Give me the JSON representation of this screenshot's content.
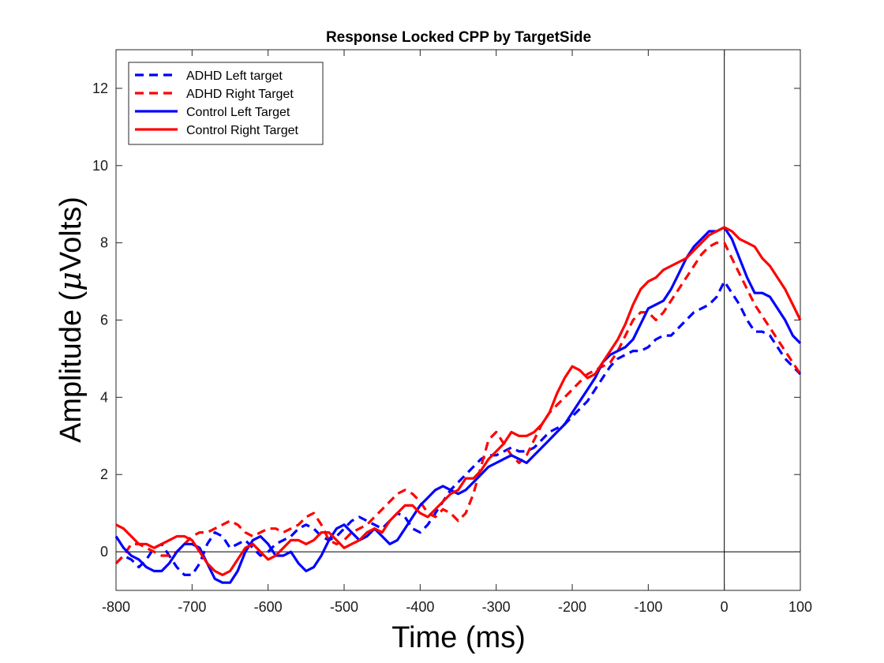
{
  "chart_data": {
    "type": "line",
    "title": "Response Locked CPP by TargetSide",
    "xlabel": "Time (ms)",
    "ylabel_prefix": "Amplitude (",
    "ylabel_mu": "μ",
    "ylabel_suffix": "Volts)",
    "xlim": [
      -800,
      100
    ],
    "ylim": [
      -1,
      13
    ],
    "xticks": [
      -800,
      -700,
      -600,
      -500,
      -400,
      -300,
      -200,
      -100,
      0,
      100
    ],
    "yticks": [
      0,
      2,
      4,
      6,
      8,
      10,
      12
    ],
    "grid": false,
    "legend_position": "top-left",
    "reference_lines": {
      "y": 0,
      "x": 0
    },
    "series": [
      {
        "name": "ADHD Left target",
        "color": "#0000ff",
        "style": "dashed",
        "x": [
          -800,
          -790,
          -780,
          -770,
          -760,
          -750,
          -740,
          -730,
          -720,
          -710,
          -700,
          -690,
          -680,
          -670,
          -660,
          -650,
          -640,
          -630,
          -620,
          -610,
          -600,
          -590,
          -580,
          -570,
          -560,
          -550,
          -540,
          -530,
          -520,
          -510,
          -500,
          -490,
          -480,
          -470,
          -460,
          -450,
          -440,
          -430,
          -420,
          -410,
          -400,
          -390,
          -380,
          -370,
          -360,
          -350,
          -340,
          -330,
          -320,
          -310,
          -300,
          -290,
          -280,
          -270,
          -260,
          -250,
          -240,
          -230,
          -220,
          -210,
          -200,
          -190,
          -180,
          -170,
          -160,
          -150,
          -140,
          -130,
          -120,
          -110,
          -100,
          -90,
          -80,
          -70,
          -60,
          -50,
          -40,
          -30,
          -20,
          -10,
          0,
          10,
          20,
          30,
          40,
          50,
          60,
          70,
          80,
          90,
          100
        ],
        "y": [
          -0.3,
          -0.1,
          -0.2,
          -0.4,
          -0.2,
          0.1,
          0.2,
          -0.1,
          -0.4,
          -0.6,
          -0.6,
          -0.3,
          0.2,
          0.5,
          0.4,
          0.1,
          0.2,
          0.3,
          0.1,
          -0.1,
          0.0,
          0.2,
          0.3,
          0.4,
          0.6,
          0.7,
          0.6,
          0.4,
          0.3,
          0.4,
          0.6,
          0.8,
          0.9,
          0.8,
          0.7,
          0.6,
          0.8,
          1.0,
          0.9,
          0.6,
          0.5,
          0.7,
          1.0,
          1.3,
          1.6,
          1.8,
          2.0,
          2.2,
          2.4,
          2.5,
          2.5,
          2.6,
          2.7,
          2.6,
          2.6,
          2.7,
          2.9,
          3.1,
          3.2,
          3.3,
          3.5,
          3.7,
          3.9,
          4.2,
          4.5,
          4.8,
          5.0,
          5.1,
          5.2,
          5.2,
          5.3,
          5.5,
          5.6,
          5.6,
          5.8,
          6.0,
          6.2,
          6.3,
          6.4,
          6.6,
          7.0,
          6.7,
          6.4,
          6.0,
          5.7,
          5.7,
          5.6,
          5.3,
          5.0,
          4.8,
          4.6
        ]
      },
      {
        "name": "ADHD Right Target",
        "color": "#ff0000",
        "style": "dashed",
        "x": [
          -800,
          -790,
          -780,
          -770,
          -760,
          -750,
          -740,
          -730,
          -720,
          -710,
          -700,
          -690,
          -680,
          -670,
          -660,
          -650,
          -640,
          -630,
          -620,
          -610,
          -600,
          -590,
          -580,
          -570,
          -560,
          -550,
          -540,
          -530,
          -520,
          -510,
          -500,
          -490,
          -480,
          -470,
          -460,
          -450,
          -440,
          -430,
          -420,
          -410,
          -400,
          -390,
          -380,
          -370,
          -360,
          -350,
          -340,
          -330,
          -320,
          -310,
          -300,
          -290,
          -280,
          -270,
          -260,
          -250,
          -240,
          -230,
          -220,
          -210,
          -200,
          -190,
          -180,
          -170,
          -160,
          -150,
          -140,
          -130,
          -120,
          -110,
          -100,
          -90,
          -80,
          -70,
          -60,
          -50,
          -40,
          -30,
          -20,
          -10,
          0,
          10,
          20,
          30,
          40,
          50,
          60,
          70,
          80,
          90,
          100
        ],
        "y": [
          -0.3,
          -0.1,
          0.2,
          0.2,
          0.1,
          0.0,
          -0.1,
          -0.1,
          0.0,
          0.2,
          0.4,
          0.5,
          0.5,
          0.6,
          0.7,
          0.8,
          0.7,
          0.5,
          0.4,
          0.5,
          0.6,
          0.6,
          0.5,
          0.6,
          0.7,
          0.9,
          1.0,
          0.7,
          0.3,
          0.2,
          0.3,
          0.5,
          0.6,
          0.7,
          0.9,
          1.1,
          1.3,
          1.5,
          1.6,
          1.5,
          1.3,
          1.0,
          0.9,
          1.1,
          1.0,
          0.8,
          1.0,
          1.5,
          2.2,
          2.9,
          3.1,
          2.8,
          2.5,
          2.3,
          2.5,
          2.9,
          3.3,
          3.6,
          3.8,
          4.0,
          4.2,
          4.4,
          4.6,
          4.7,
          4.8,
          4.9,
          5.2,
          5.6,
          6.0,
          6.2,
          6.2,
          6.0,
          6.2,
          6.5,
          6.8,
          7.1,
          7.4,
          7.7,
          7.9,
          8.0,
          8.0,
          7.6,
          7.2,
          6.8,
          6.4,
          6.1,
          5.8,
          5.5,
          5.2,
          4.9,
          4.6
        ]
      },
      {
        "name": "Control Left Target",
        "color": "#0000ff",
        "style": "solid",
        "x": [
          -800,
          -790,
          -780,
          -770,
          -760,
          -750,
          -740,
          -730,
          -720,
          -710,
          -700,
          -690,
          -680,
          -670,
          -660,
          -650,
          -640,
          -630,
          -620,
          -610,
          -600,
          -590,
          -580,
          -570,
          -560,
          -550,
          -540,
          -530,
          -520,
          -510,
          -500,
          -490,
          -480,
          -470,
          -460,
          -450,
          -440,
          -430,
          -420,
          -410,
          -400,
          -390,
          -380,
          -370,
          -360,
          -350,
          -340,
          -330,
          -320,
          -310,
          -300,
          -290,
          -280,
          -270,
          -260,
          -250,
          -240,
          -230,
          -220,
          -210,
          -200,
          -190,
          -180,
          -170,
          -160,
          -150,
          -140,
          -130,
          -120,
          -110,
          -100,
          -90,
          -80,
          -70,
          -60,
          -50,
          -40,
          -30,
          -20,
          -10,
          0,
          10,
          20,
          30,
          40,
          50,
          60,
          70,
          80,
          90,
          100
        ],
        "y": [
          0.4,
          0.1,
          -0.1,
          -0.2,
          -0.4,
          -0.5,
          -0.5,
          -0.3,
          0.0,
          0.2,
          0.2,
          0.1,
          -0.3,
          -0.7,
          -0.8,
          -0.8,
          -0.5,
          0.0,
          0.3,
          0.4,
          0.2,
          -0.1,
          -0.1,
          0.0,
          -0.3,
          -0.5,
          -0.4,
          -0.1,
          0.3,
          0.6,
          0.7,
          0.5,
          0.3,
          0.4,
          0.6,
          0.4,
          0.2,
          0.3,
          0.6,
          0.9,
          1.2,
          1.4,
          1.6,
          1.7,
          1.6,
          1.5,
          1.6,
          1.8,
          2.0,
          2.2,
          2.3,
          2.4,
          2.5,
          2.4,
          2.3,
          2.5,
          2.7,
          2.9,
          3.1,
          3.3,
          3.6,
          3.9,
          4.2,
          4.5,
          4.9,
          5.1,
          5.2,
          5.3,
          5.5,
          5.9,
          6.3,
          6.4,
          6.5,
          6.8,
          7.2,
          7.6,
          7.9,
          8.1,
          8.3,
          8.3,
          8.4,
          8.1,
          7.6,
          7.1,
          6.7,
          6.7,
          6.6,
          6.3,
          6.0,
          5.6,
          5.4
        ]
      },
      {
        "name": "Control Right Target",
        "color": "#ff0000",
        "style": "solid",
        "x": [
          -800,
          -790,
          -780,
          -770,
          -760,
          -750,
          -740,
          -730,
          -720,
          -710,
          -700,
          -690,
          -680,
          -670,
          -660,
          -650,
          -640,
          -630,
          -620,
          -610,
          -600,
          -590,
          -580,
          -570,
          -560,
          -550,
          -540,
          -530,
          -520,
          -510,
          -500,
          -490,
          -480,
          -470,
          -460,
          -450,
          -440,
          -430,
          -420,
          -410,
          -400,
          -390,
          -380,
          -370,
          -360,
          -350,
          -340,
          -330,
          -320,
          -310,
          -300,
          -290,
          -280,
          -270,
          -260,
          -250,
          -240,
          -230,
          -220,
          -210,
          -200,
          -190,
          -180,
          -170,
          -160,
          -150,
          -140,
          -130,
          -120,
          -110,
          -100,
          -90,
          -80,
          -70,
          -60,
          -50,
          -40,
          -30,
          -20,
          -10,
          0,
          10,
          20,
          30,
          40,
          50,
          60,
          70,
          80,
          90,
          100
        ],
        "y": [
          0.7,
          0.6,
          0.4,
          0.2,
          0.2,
          0.1,
          0.2,
          0.3,
          0.4,
          0.4,
          0.3,
          0.0,
          -0.3,
          -0.5,
          -0.6,
          -0.5,
          -0.2,
          0.1,
          0.2,
          0.0,
          -0.2,
          -0.1,
          0.1,
          0.3,
          0.3,
          0.2,
          0.3,
          0.5,
          0.5,
          0.3,
          0.1,
          0.2,
          0.3,
          0.5,
          0.6,
          0.5,
          0.8,
          1.0,
          1.2,
          1.2,
          1.0,
          0.9,
          1.1,
          1.3,
          1.5,
          1.6,
          1.9,
          1.9,
          2.1,
          2.4,
          2.6,
          2.8,
          3.1,
          3.0,
          3.0,
          3.1,
          3.3,
          3.6,
          4.1,
          4.5,
          4.8,
          4.7,
          4.5,
          4.6,
          4.9,
          5.2,
          5.5,
          5.9,
          6.4,
          6.8,
          7.0,
          7.1,
          7.3,
          7.4,
          7.5,
          7.6,
          7.8,
          8.0,
          8.2,
          8.3,
          8.4,
          8.3,
          8.1,
          8.0,
          7.9,
          7.6,
          7.4,
          7.1,
          6.8,
          6.4,
          6.0
        ]
      }
    ]
  }
}
